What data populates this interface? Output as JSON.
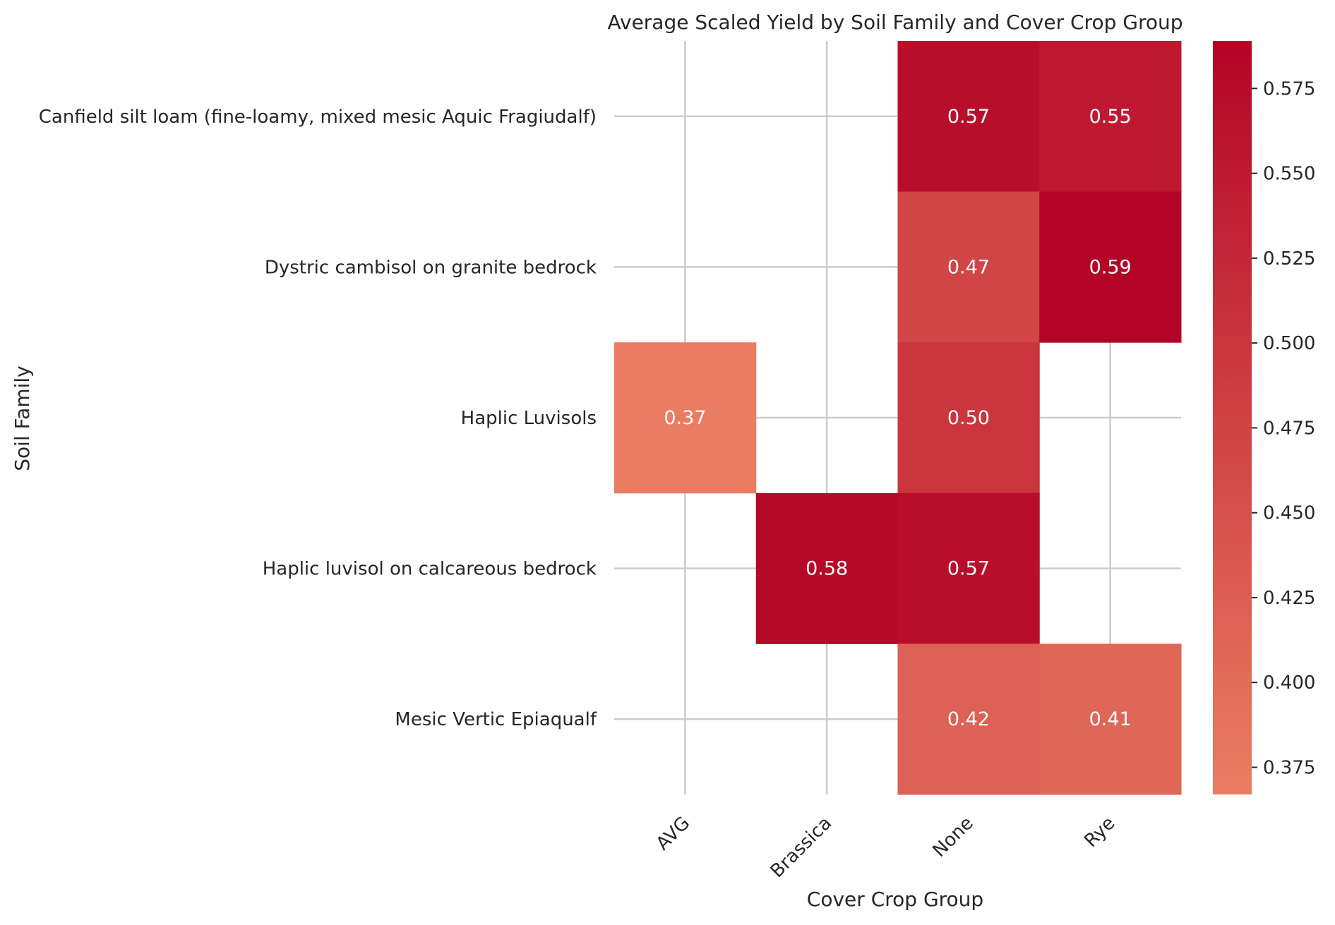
{
  "chart_data": {
    "type": "heatmap",
    "title": "Average Scaled Yield by Soil Family and Cover Crop Group",
    "xlabel": "Cover Crop Group",
    "ylabel": "Soil Family",
    "x_categories": [
      "AVG",
      "Brassica",
      "None",
      "Rye"
    ],
    "y_categories": [
      "Canfield silt loam (fine-loamy, mixed mesic Aquic Fragiudalf)",
      "Dystric cambisol on granite bedrock",
      "Haplic Luvisols",
      "Haplic luvisol on calcareous bedrock",
      "Mesic Vertic Epiaqualf"
    ],
    "values": [
      [
        null,
        null,
        0.57,
        0.55
      ],
      [
        null,
        null,
        0.47,
        0.59
      ],
      [
        0.37,
        null,
        0.5,
        null
      ],
      [
        null,
        0.58,
        0.57,
        null
      ],
      [
        null,
        null,
        0.42,
        0.41
      ]
    ],
    "cell_labels": [
      [
        null,
        null,
        "0.57",
        "0.55"
      ],
      [
        null,
        null,
        "0.47",
        "0.59"
      ],
      [
        "0.37",
        null,
        "0.50",
        null
      ],
      [
        null,
        "0.58",
        "0.57",
        null
      ],
      [
        null,
        null,
        "0.42",
        "0.41"
      ]
    ],
    "colorbar": {
      "range": [
        0.367,
        0.589
      ],
      "ticks": [
        0.375,
        0.4,
        0.425,
        0.45,
        0.475,
        0.5,
        0.525,
        0.55,
        0.575
      ],
      "tick_labels": [
        "0.375",
        "0.400",
        "0.425",
        "0.450",
        "0.475",
        "0.500",
        "0.525",
        "0.550",
        "0.575"
      ],
      "color_low": "#ea7e63",
      "color_high": "#b40426"
    },
    "grid": true,
    "grid_color": "#cccccc"
  }
}
